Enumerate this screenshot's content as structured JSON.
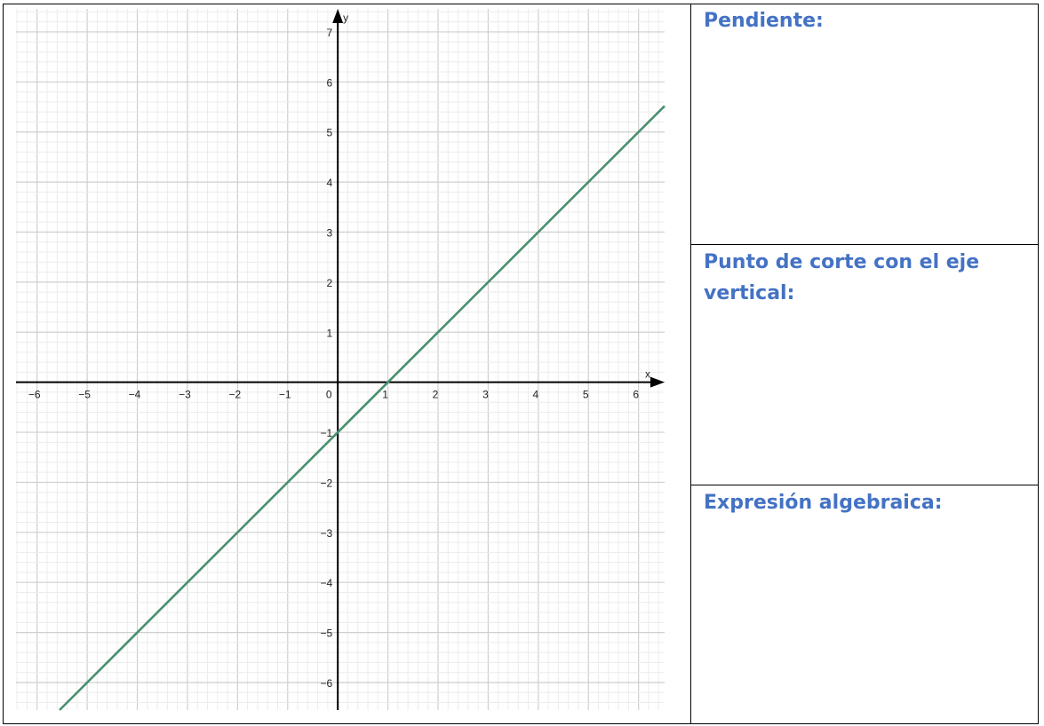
{
  "worksheet": {
    "cells": [
      {
        "label": "Pendiente:"
      },
      {
        "label": "Punto de corte con el eje vertical:"
      },
      {
        "label": "Expresión algebraica:"
      }
    ],
    "label_color": "#4472c4"
  },
  "chart_data": {
    "type": "line",
    "title": "",
    "xlabel": "x",
    "ylabel": "y",
    "xlim": [
      -6.42,
      6.52
    ],
    "ylim": [
      -6.55,
      7.46
    ],
    "grid": true,
    "minor_grid_subdivisions": 5,
    "x_ticks": [
      -6,
      -5,
      -4,
      -3,
      -2,
      -1,
      0,
      1,
      2,
      3,
      4,
      5,
      6
    ],
    "y_ticks": [
      -6,
      -5,
      -4,
      -3,
      -2,
      -1,
      1,
      2,
      3,
      4,
      5,
      6,
      7
    ],
    "x_tick_labels": [
      "−6",
      "−5",
      "−4",
      "−3",
      "−2",
      "−1",
      "0",
      "1",
      "2",
      "3",
      "4",
      "5",
      "6"
    ],
    "y_tick_labels": [
      "−6",
      "−5",
      "−4",
      "−3",
      "−2",
      "−1",
      "1",
      "2",
      "3",
      "4",
      "5",
      "6",
      "7"
    ],
    "series": [
      {
        "slope": 1,
        "intercept": -1,
        "x": [
          -5.55,
          6.52
        ],
        "y": [
          -6.55,
          5.52
        ],
        "color": "#4a8f6e"
      }
    ]
  }
}
